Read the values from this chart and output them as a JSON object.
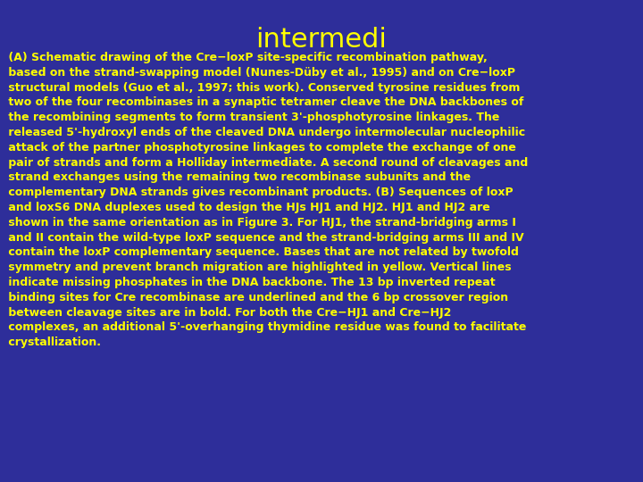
{
  "title": "intermedi",
  "title_color": "#FFFF00",
  "title_fontsize": 22,
  "background_color": "#2E2E9A",
  "text_color": "#FFFF00",
  "text_fontsize": 9.0,
  "body_text": " (A) Schematic drawing of the Cre−loxP site-specific recombination pathway,\n based on the strand-swapping model (Nunes-Düby et al., 1995) and on Cre−loxP\n structural models (Guo et al., 1997; this work). Conserved tyrosine residues from\n two of the four recombinases in a synaptic tetramer cleave the DNA backbones of\n the recombining segments to form transient 3'-phosphotyrosine linkages. The\n released 5'-hydroxyl ends of the cleaved DNA undergo intermolecular nucleophilic\n attack of the partner phosphotyrosine linkages to complete the exchange of one\n pair of strands and form a Holliday intermediate. A second round of cleavages and\n strand exchanges using the remaining two recombinase subunits and the\n complementary DNA strands gives recombinant products. (B) Sequences of loxP\n and loxS6 DNA duplexes used to design the HJs HJ1 and HJ2. HJ1 and HJ2 are\n shown in the same orientation as in Figure 3. For HJ1, the strand-bridging arms I\n and II contain the wild-type loxP sequence and the strand-bridging arms III and IV\n contain the loxP complementary sequence. Bases that are not related by twofold\n symmetry and prevent branch migration are highlighted in yellow. Vertical lines\n indicate missing phosphates in the DNA backbone. The 13 bp inverted repeat\n binding sites for Cre recombinase are underlined and the 6 bp crossover region\n between cleavage sites are in bold. For both the Cre−HJ1 and Cre−HJ2\n complexes, an additional 5'-overhanging thymidine residue was found to facilitate\n crystallization."
}
